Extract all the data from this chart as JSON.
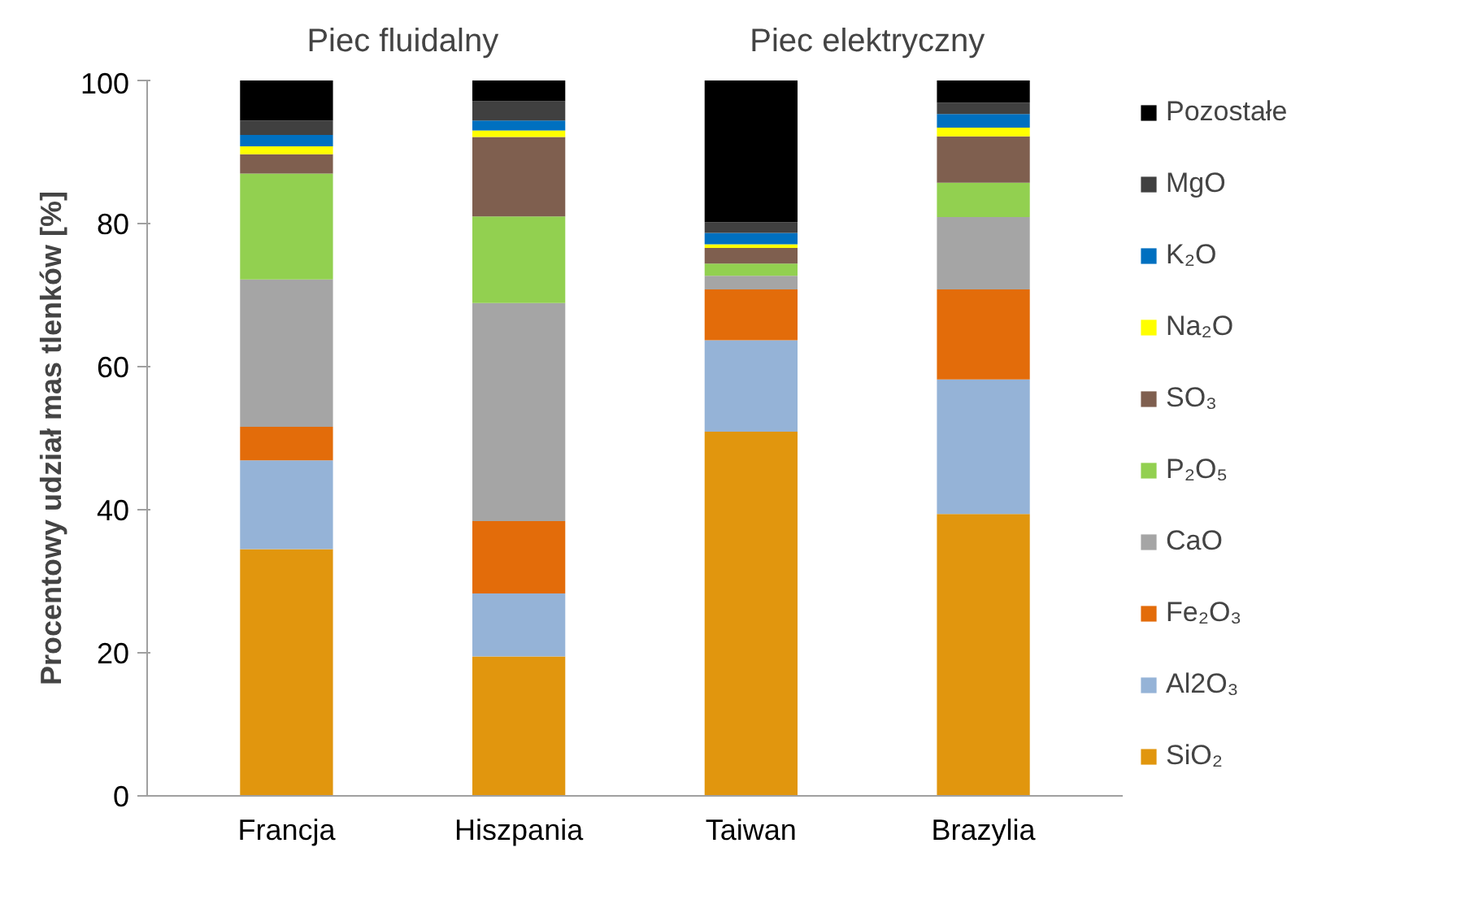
{
  "chart_data": {
    "type": "bar",
    "stacked": true,
    "ylabel": "Procentowy udział mas tlenków [%]",
    "categories": [
      "Francja",
      "Hiszpania",
      "Taiwan",
      "Brazylia"
    ],
    "ylim": [
      0,
      100
    ],
    "yticks": [
      0,
      20,
      40,
      60,
      80,
      100
    ],
    "grid": false,
    "legend": "right",
    "annotations": [
      "Piec fluidalny",
      "Piec elektryczny"
    ],
    "series": [
      {
        "name": "SiO₂",
        "color": "#e1960e",
        "values": [
          34.5,
          19.5,
          50.9,
          39.4
        ]
      },
      {
        "name": "Al2O₃",
        "color": "#95b3d7",
        "values": [
          12.4,
          8.8,
          12.8,
          18.8
        ]
      },
      {
        "name": "Fe₂O₃",
        "color": "#e36c0a",
        "values": [
          4.7,
          10.1,
          7.1,
          12.6
        ]
      },
      {
        "name": "CaO",
        "color": "#a5a5a5",
        "values": [
          20.6,
          30.5,
          1.9,
          10.1
        ]
      },
      {
        "name": "P₂O₅",
        "color": "#92d050",
        "values": [
          14.8,
          12.1,
          1.7,
          4.8
        ]
      },
      {
        "name": "SO₃",
        "color": "#7f5f4f",
        "values": [
          2.7,
          11.1,
          2.2,
          6.5
        ]
      },
      {
        "name": "Na₂O",
        "color": "#ffff00",
        "values": [
          1.1,
          0.9,
          0.5,
          1.2
        ]
      },
      {
        "name": "K₂O",
        "color": "#0070c0",
        "values": [
          1.6,
          1.4,
          1.6,
          1.9
        ]
      },
      {
        "name": "MgO",
        "color": "#404040",
        "values": [
          2.0,
          2.7,
          1.5,
          1.6
        ]
      },
      {
        "name": "Pozostałe",
        "color": "#000000",
        "values": [
          5.6,
          2.9,
          19.8,
          3.1
        ]
      }
    ]
  }
}
